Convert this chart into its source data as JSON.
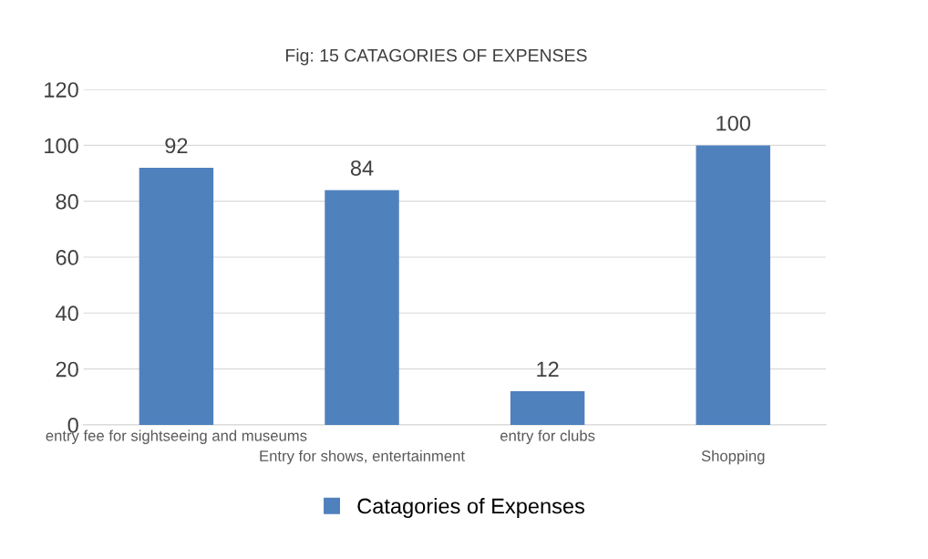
{
  "chart_data": {
    "type": "bar",
    "title": "Fig: 15 CATAGORIES OF EXPENSES",
    "categories": [
      "entry fee for sightseeing and museums",
      "Entry for shows, entertainment",
      "entry for clubs",
      "Shopping"
    ],
    "series": [
      {
        "name": "Catagories of Expenses",
        "color": "#4f81bd",
        "values": [
          92,
          84,
          12,
          100
        ]
      }
    ],
    "ylim": [
      0,
      120
    ],
    "yticks": [
      0,
      20,
      40,
      60,
      80,
      100,
      120
    ],
    "grid": "y",
    "legend": "bottom",
    "data_labels": true
  }
}
